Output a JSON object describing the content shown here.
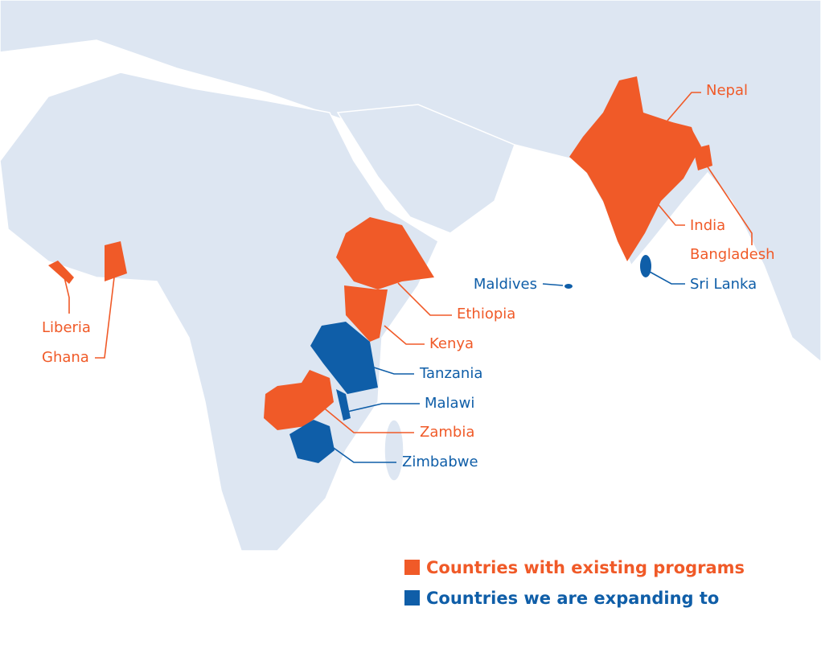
{
  "map": {
    "countries": [
      {
        "name": "Nepal",
        "color": "#f05a28"
      },
      {
        "name": "India",
        "color": "#f05a28"
      },
      {
        "name": "Bangladesh",
        "color": "#f05a28"
      },
      {
        "name": "Maldives",
        "color": "#0f5ea8"
      },
      {
        "name": "Sri Lanka",
        "color": "#0f5ea8"
      },
      {
        "name": "Ethiopia",
        "color": "#f05a28"
      },
      {
        "name": "Kenya",
        "color": "#f05a28"
      },
      {
        "name": "Tanzania",
        "color": "#0f5ea8"
      },
      {
        "name": "Malawi",
        "color": "#0f5ea8"
      },
      {
        "name": "Zambia",
        "color": "#f05a28"
      },
      {
        "name": "Zimbabwe",
        "color": "#0f5ea8"
      },
      {
        "name": "Liberia",
        "color": "#f05a28"
      },
      {
        "name": "Ghana",
        "color": "#f05a28"
      }
    ],
    "legend": [
      {
        "label": "Countries with existing programs",
        "color": "#f05a28"
      },
      {
        "label": "Countries we are expanding to",
        "color": "#0f5ea8"
      }
    ]
  }
}
